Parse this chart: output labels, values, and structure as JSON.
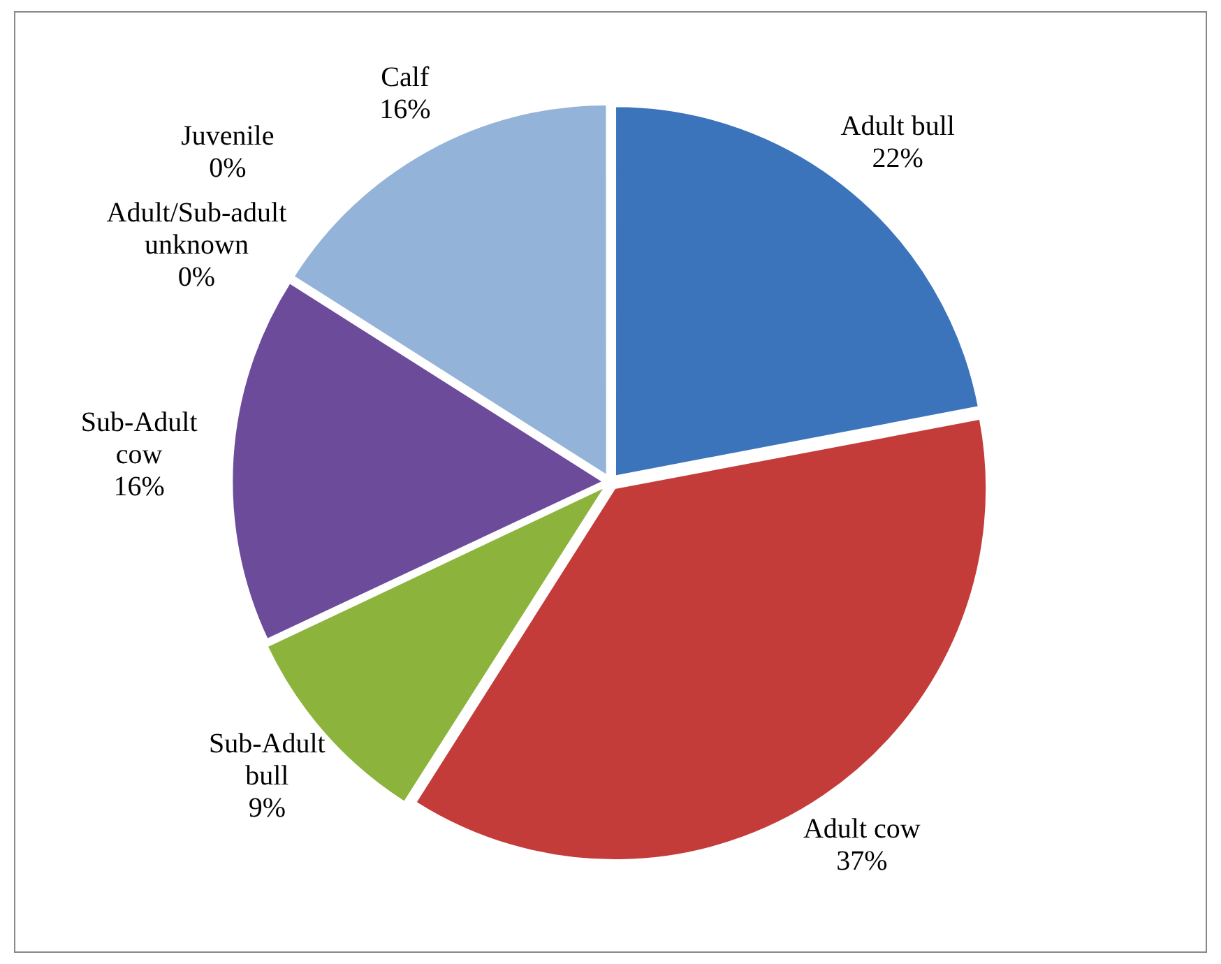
{
  "chart_data": {
    "type": "pie",
    "categories": [
      "Adult bull",
      "Adult cow",
      "Sub-Adult bull",
      "Sub-Adult cow",
      "Adult/Sub-adult unknown",
      "Juvenile",
      "Calf"
    ],
    "values": [
      22,
      37,
      9,
      16,
      0,
      0,
      16
    ],
    "colors": [
      "#3b74bb",
      "#c43c3a",
      "#8cb33c",
      "#6d4b9b",
      "#3aa1c2",
      "#f18b2f",
      "#94b3d9"
    ],
    "value_labels": [
      "22%",
      "37%",
      "9%",
      "16%",
      "0%",
      "0%",
      "16%"
    ]
  }
}
